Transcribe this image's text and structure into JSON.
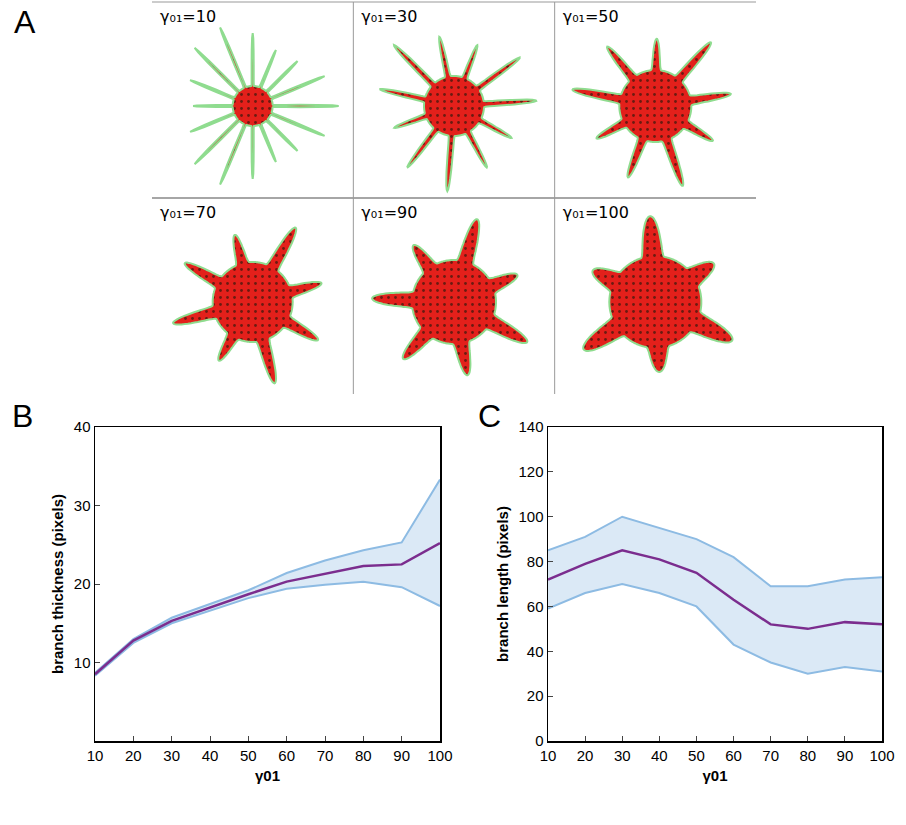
{
  "figure_a": {
    "letter": "A",
    "panels": [
      "γ₀₁=10",
      "γ₀₁=30",
      "γ₀₁=50",
      "γ₀₁=70",
      "γ₀₁=90",
      "γ₀₁=100"
    ]
  },
  "chart_data": [
    {
      "type": "line",
      "panel": "B",
      "x_label": "γ01",
      "y_label": "branch thickness (pixels)",
      "x": [
        10,
        20,
        30,
        40,
        50,
        60,
        70,
        80,
        90,
        100
      ],
      "values": [
        8.5,
        12.8,
        15.3,
        17.0,
        18.7,
        20.3,
        21.3,
        22.3,
        22.5,
        25.2
      ],
      "upper": [
        8.7,
        13.0,
        15.7,
        17.4,
        19.2,
        21.4,
        23.0,
        24.3,
        25.3,
        33.3
      ],
      "lower": [
        8.3,
        12.5,
        15.0,
        16.6,
        18.2,
        19.4,
        19.9,
        20.3,
        19.6,
        17.2
      ],
      "color": "#7b2d8e",
      "xlim": [
        10,
        100
      ],
      "xticks": [
        10,
        20,
        30,
        40,
        50,
        60,
        70,
        80,
        90,
        100
      ],
      "ylim": [
        0,
        40
      ],
      "yticks": [
        10,
        20,
        30,
        40
      ],
      "grid": false
    },
    {
      "type": "line",
      "panel": "C",
      "x_label": "γ01",
      "y_label": "branch length (pixels)",
      "x": [
        10,
        20,
        30,
        40,
        50,
        60,
        70,
        80,
        90,
        100
      ],
      "values": [
        72,
        79,
        85,
        81,
        75,
        63,
        52,
        50,
        53,
        52
      ],
      "upper": [
        85,
        91,
        100,
        95,
        90,
        82,
        69,
        69,
        72,
        73
      ],
      "lower": [
        59,
        66,
        70,
        66,
        60,
        43,
        35,
        30,
        33,
        31
      ],
      "color": "#7b2d8e",
      "xlim": [
        10,
        100
      ],
      "xticks": [
        10,
        20,
        30,
        40,
        50,
        60,
        70,
        80,
        90,
        100
      ],
      "ylim": [
        0,
        140
      ],
      "yticks": [
        0,
        20,
        40,
        60,
        80,
        100,
        120,
        140
      ],
      "grid": false
    }
  ]
}
